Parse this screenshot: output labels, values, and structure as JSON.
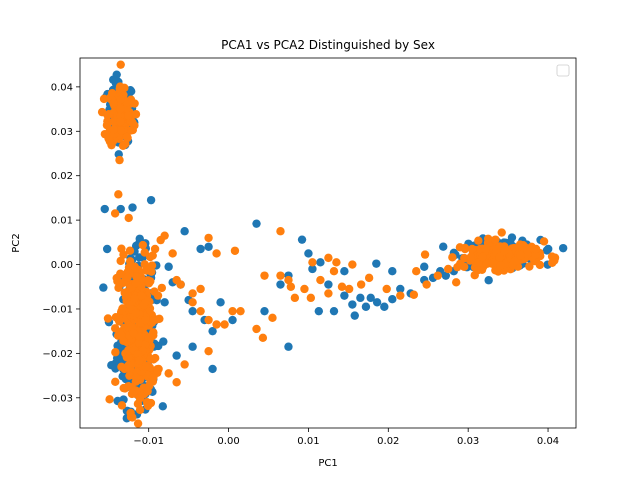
{
  "chart_data": {
    "type": "scatter",
    "title": "PCA1 vs PCA2 Distinguished by Sex",
    "xlabel": "PC1",
    "ylabel": "PC2",
    "xlim": [
      -0.0186,
      0.0435
    ],
    "ylim": [
      -0.0368,
      0.0465
    ],
    "xticks": [
      -0.01,
      0.0,
      0.01,
      0.02,
      0.03,
      0.04
    ],
    "xtick_labels": [
      "−0.01",
      "0.00",
      "0.01",
      "0.02",
      "0.03",
      "0.04"
    ],
    "yticks": [
      -0.03,
      -0.02,
      -0.01,
      0.0,
      0.01,
      0.02,
      0.03,
      0.04
    ],
    "ytick_labels": [
      "−0.03",
      "−0.02",
      "−0.01",
      "0.00",
      "0.01",
      "0.02",
      "0.03",
      "0.04"
    ],
    "grid": false,
    "legend": "top-right (empty)",
    "series": [
      {
        "color": "#1f77b4",
        "clusters": [
          {
            "cx": -0.0135,
            "cy": 0.034,
            "sx": 0.0008,
            "sy": 0.0035,
            "n": 130
          },
          {
            "cx": -0.0115,
            "cy": -0.015,
            "sx": 0.0012,
            "sy": 0.0085,
            "n": 320
          },
          {
            "cx": 0.034,
            "cy": 0.0025,
            "sx": 0.0025,
            "sy": 0.0015,
            "n": 140
          }
        ],
        "points": [
          [
            -0.0155,
            0.0125
          ],
          [
            -0.0152,
            0.0035
          ],
          [
            -0.0135,
            0.0125
          ],
          [
            -0.0097,
            0.0145
          ],
          [
            -0.0055,
            0.0075
          ],
          [
            -0.0035,
            0.0035
          ],
          [
            -0.0025,
            0.004
          ],
          [
            -0.0075,
            -0.0005
          ],
          [
            -0.007,
            -0.004
          ],
          [
            -0.006,
            -0.0045
          ],
          [
            -0.008,
            -0.0085
          ],
          [
            -0.005,
            -0.008
          ],
          [
            -0.0045,
            -0.0105
          ],
          [
            -0.003,
            -0.0125
          ],
          [
            -0.002,
            -0.015
          ],
          [
            -0.0045,
            -0.0185
          ],
          [
            -0.002,
            -0.0235
          ],
          [
            -0.0065,
            -0.0205
          ],
          [
            -0.001,
            -0.0085
          ],
          [
            0.0005,
            -0.0125
          ],
          [
            0.0035,
            0.0092
          ],
          [
            0.0045,
            -0.0105
          ],
          [
            0.0065,
            -0.0045
          ],
          [
            0.0075,
            -0.0185
          ],
          [
            0.0092,
            0.0056
          ],
          [
            0.01,
            0.0025
          ],
          [
            0.0105,
            -0.001
          ],
          [
            0.0113,
            -0.0105
          ],
          [
            0.0125,
            -0.0045
          ],
          [
            0.0132,
            -0.0105
          ],
          [
            0.0145,
            -0.007
          ],
          [
            0.0155,
            -0.009
          ],
          [
            0.0158,
            -0.0115
          ],
          [
            0.0165,
            -0.0075
          ],
          [
            0.0172,
            -0.0095
          ],
          [
            0.0178,
            -0.0075
          ],
          [
            0.0186,
            -0.0085
          ],
          [
            0.0195,
            -0.0095
          ],
          [
            0.0205,
            -0.0078
          ],
          [
            0.0215,
            -0.0055
          ],
          [
            0.0228,
            -0.0065
          ],
          [
            0.0245,
            -0.0035
          ],
          [
            0.0256,
            -0.003
          ],
          [
            0.0272,
            -0.0025
          ],
          [
            0.0282,
            -0.0015
          ],
          [
            0.0298,
            0.0006
          ],
          [
            0.0306,
            0.003
          ],
          [
            0.0315,
            0.0045
          ],
          [
            0.0145,
            -0.0015
          ],
          [
            0.0115,
            0.0005
          ],
          [
            0.0185,
            0.0002
          ],
          [
            0.0205,
            -0.0015
          ],
          [
            0.0245,
            -0.0005
          ],
          [
            0.0265,
            -0.0015
          ],
          [
            0.0075,
            -0.0025
          ]
        ]
      },
      {
        "color": "#ff7f0e",
        "clusters": [
          {
            "cx": -0.0135,
            "cy": 0.0335,
            "sx": 0.0008,
            "sy": 0.0035,
            "n": 140
          },
          {
            "cx": -0.0115,
            "cy": -0.0155,
            "sx": 0.0012,
            "sy": 0.0085,
            "n": 340
          },
          {
            "cx": 0.034,
            "cy": 0.002,
            "sx": 0.0025,
            "sy": 0.0015,
            "n": 150
          }
        ],
        "points": [
          [
            -0.0135,
            0.045
          ],
          [
            -0.0138,
            0.0158
          ],
          [
            -0.0142,
            0.0115
          ],
          [
            -0.0125,
            0.0105
          ],
          [
            -0.0085,
            0.0055
          ],
          [
            -0.008,
            0.0065
          ],
          [
            -0.0092,
            0.0035
          ],
          [
            -0.007,
            0.0025
          ],
          [
            -0.0025,
            0.006
          ],
          [
            0.0008,
            0.0031
          ],
          [
            -0.0015,
            0.0025
          ],
          [
            -0.0065,
            -0.0035
          ],
          [
            -0.006,
            -0.0045
          ],
          [
            -0.0045,
            -0.0065
          ],
          [
            -0.0035,
            -0.0055
          ],
          [
            -0.0045,
            -0.0085
          ],
          [
            -0.0035,
            -0.0105
          ],
          [
            -0.0025,
            -0.0125
          ],
          [
            -0.0015,
            -0.0135
          ],
          [
            -0.0005,
            -0.0135
          ],
          [
            0.0005,
            -0.0105
          ],
          [
            0.0015,
            -0.0105
          ],
          [
            0.0035,
            -0.0145
          ],
          [
            0.0043,
            -0.0165
          ],
          [
            0.0045,
            -0.0025
          ],
          [
            0.0065,
            0.0075
          ],
          [
            0.0075,
            -0.0035
          ],
          [
            0.0083,
            -0.0075
          ],
          [
            0.0095,
            -0.0055
          ],
          [
            0.0103,
            -0.0075
          ],
          [
            0.0115,
            -0.0035
          ],
          [
            0.0125,
            -0.0065
          ],
          [
            0.0132,
            -0.0015
          ],
          [
            0.0142,
            -0.005
          ],
          [
            0.0151,
            -0.0055
          ],
          [
            0.0166,
            -0.0045
          ],
          [
            0.0176,
            -0.003
          ],
          [
            0.0198,
            -0.0055
          ],
          [
            0.0215,
            -0.007
          ],
          [
            0.0232,
            -0.0068
          ],
          [
            0.0235,
            -0.0015
          ],
          [
            0.0248,
            -0.0045
          ],
          [
            0.0262,
            -0.0025
          ],
          [
            0.0275,
            -0.001
          ],
          [
            0.0285,
            -0.004
          ],
          [
            0.0295,
            -0.0005
          ],
          [
            0.0305,
            0.0035
          ],
          [
            0.0325,
            0.0058
          ],
          [
            0.0342,
            0.0072
          ],
          [
            0.0365,
            0.0045
          ],
          [
            0.0385,
            0.0035
          ],
          [
            0.0405,
            0.0018
          ],
          [
            0.0395,
            0.0052
          ],
          [
            0.0105,
            0.0005
          ],
          [
            0.0125,
            0.0015
          ],
          [
            0.0135,
            0.0005
          ],
          [
            0.0155,
            0.0
          ],
          [
            0.0078,
            -0.005
          ],
          [
            0.0065,
            -0.0025
          ],
          [
            0.0055,
            -0.012
          ],
          [
            -0.0025,
            -0.0195
          ],
          [
            -0.0055,
            -0.0225
          ],
          [
            -0.0065,
            -0.0265
          ],
          [
            -0.0075,
            -0.0245
          ]
        ]
      }
    ]
  }
}
